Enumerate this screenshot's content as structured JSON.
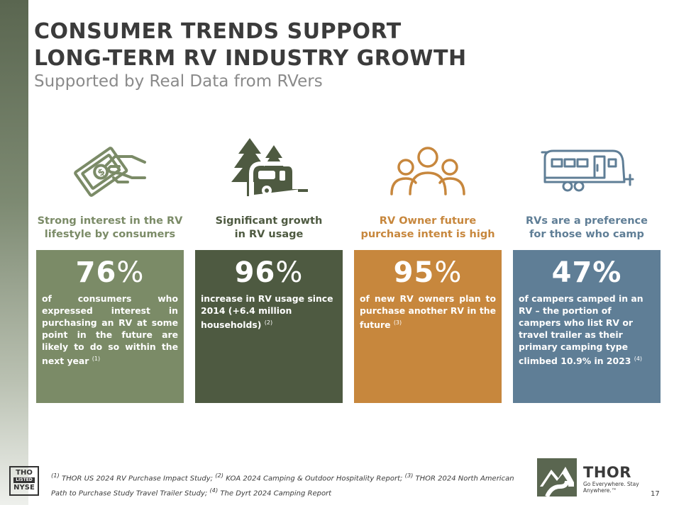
{
  "slide": {
    "title_line1": "CONSUMER TRENDS SUPPORT",
    "title_line2": "LONG-TERM RV INDUSTRY GROWTH",
    "subtitle": "Supported by Real Data from RVers",
    "page_number": "17"
  },
  "columns": [
    {
      "icon": "money-hand-icon",
      "heading_line1": "Strong interest in the RV",
      "heading_line2": "lifestyle by consumers",
      "stat_number": "76",
      "stat_suffix": "%",
      "description": "of consumers who expressed interest in purchasing an RV at some point in the future are likely to do so within the next year",
      "footnote_ref": "(1)",
      "heading_color": "#7b8b67",
      "card_color": "#7b8b67"
    },
    {
      "icon": "trees-camper-icon",
      "heading_line1": "Significant growth",
      "heading_line2": "in RV usage",
      "stat_number": "96",
      "stat_suffix": "%",
      "description": "increase in RV usage since 2014 (+6.4 million households)",
      "footnote_ref": "(2)",
      "heading_color": "#4e5a41",
      "card_color": "#4e5a41"
    },
    {
      "icon": "people-group-icon",
      "heading_line1": "RV Owner future",
      "heading_line2": "purchase intent is high",
      "stat_number": "95",
      "stat_suffix": "%",
      "description": "of new RV owners plan to purchase another RV in the future",
      "footnote_ref": "(3)",
      "heading_color": "#c7873d",
      "card_color": "#c7873d"
    },
    {
      "icon": "travel-trailer-icon",
      "heading_line1": "RVs are a preference",
      "heading_line2": "for those who camp",
      "stat_number": "47",
      "stat_suffix": "%",
      "description": "of campers camped in an RV – the portion of campers who list RV or travel trailer as their primary camping type climbed 10.9% in 2023",
      "footnote_ref": "(4)",
      "heading_color": "#5f7e96",
      "card_color": "#5f7e96"
    }
  ],
  "footnotes": {
    "ref1": "(1)",
    "text1": " THOR US 2024 RV Purchase Impact Study; ",
    "ref2": "(2)",
    "text2": " KOA 2024 Camping & Outdoor Hospitality Report; ",
    "ref3": "(3)",
    "text3": " THOR 2024 North American Path to Purchase Study Travel Trailer Study; ",
    "ref4": "(4)",
    "text4": " The Dyrt 2024 Camping Report"
  },
  "nyse_badge": {
    "line1": "THO",
    "line2": "LISTED",
    "line3": "NYSE"
  },
  "brand": {
    "name": "THOR",
    "tagline": "Go Everywhere. Stay Anywhere.™",
    "logo_icon": "thor-mountain-road-logo"
  }
}
